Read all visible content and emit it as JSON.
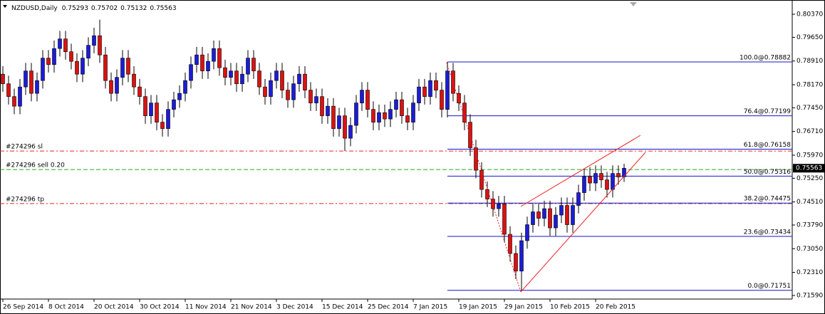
{
  "chart_data": {
    "type": "candlestick",
    "title": "NZDUSD,Daily",
    "categories": [
      "26 Sep 2014",
      null,
      null,
      null,
      null,
      null,
      null,
      null,
      "8 Oct 2014",
      null,
      null,
      null,
      null,
      null,
      null,
      null,
      "20 Oct 2014",
      null,
      null,
      null,
      null,
      null,
      null,
      null,
      "30 Oct 2014",
      null,
      null,
      null,
      null,
      null,
      null,
      null,
      "11 Nov 2014",
      null,
      null,
      null,
      null,
      null,
      null,
      null,
      "21 Nov 2014",
      null,
      null,
      null,
      null,
      null,
      null,
      null,
      "3 Dec 2014",
      null,
      null,
      null,
      null,
      null,
      null,
      null,
      "15 Dec 2014",
      null,
      null,
      null,
      null,
      null,
      null,
      null,
      "25 Dec 2014",
      null,
      null,
      null,
      null,
      null,
      null,
      null,
      "7 Jan 2015",
      null,
      null,
      null,
      null,
      null,
      null,
      null,
      "19 Jan 2015",
      null,
      null,
      null,
      null,
      null,
      null,
      null,
      "29 Jan 2015",
      null,
      null,
      null,
      null,
      null,
      null,
      null,
      "10 Feb 2015",
      null,
      null,
      null,
      null,
      null,
      null,
      null,
      "20 Feb 2015",
      null,
      null,
      null,
      null,
      null
    ],
    "open": [
      0.785,
      0.782,
      0.778,
      0.775,
      0.781,
      0.786,
      0.779,
      0.783,
      0.79,
      0.788,
      0.793,
      0.796,
      0.792,
      0.789,
      0.785,
      0.79,
      0.794,
      0.797,
      0.791,
      0.783,
      0.779,
      0.784,
      0.79,
      0.785,
      0.781,
      0.778,
      0.772,
      0.776,
      0.77,
      0.768,
      0.774,
      0.777,
      0.779,
      0.783,
      0.788,
      0.791,
      0.786,
      0.789,
      0.793,
      0.787,
      0.784,
      0.786,
      0.782,
      0.785,
      0.79,
      0.786,
      0.781,
      0.778,
      0.783,
      0.786,
      0.78,
      0.777,
      0.782,
      0.785,
      0.78,
      0.776,
      0.778,
      0.772,
      0.775,
      0.768,
      0.772,
      0.765,
      0.769,
      0.776,
      0.78,
      0.774,
      0.77,
      0.773,
      0.771,
      0.774,
      0.777,
      0.772,
      0.77,
      0.776,
      0.781,
      0.778,
      0.783,
      0.78,
      0.774,
      0.786,
      0.779,
      0.776,
      0.77,
      0.762,
      0.755,
      0.749,
      0.746,
      0.743,
      0.7445,
      0.735,
      0.729,
      0.7235,
      0.733,
      0.738,
      0.742,
      0.74,
      0.743,
      0.737,
      0.741,
      0.744,
      0.738,
      0.744,
      0.748,
      0.753,
      0.751,
      0.754,
      0.752,
      0.749,
      0.754,
      0.75293
    ],
    "high": [
      0.7875,
      0.7845,
      0.7805,
      0.7835,
      0.7885,
      0.7885,
      0.7855,
      0.7925,
      0.7925,
      0.7955,
      0.7985,
      0.7985,
      0.7945,
      0.7915,
      0.7925,
      0.7965,
      0.7995,
      0.802,
      0.7935,
      0.7855,
      0.7865,
      0.7925,
      0.7925,
      0.7875,
      0.7835,
      0.7805,
      0.7785,
      0.7785,
      0.7725,
      0.7765,
      0.7795,
      0.7815,
      0.7855,
      0.7905,
      0.7935,
      0.7935,
      0.7915,
      0.7955,
      0.7955,
      0.7895,
      0.7885,
      0.7885,
      0.7875,
      0.7925,
      0.7925,
      0.7885,
      0.7835,
      0.7855,
      0.7885,
      0.7885,
      0.7825,
      0.7845,
      0.7875,
      0.7875,
      0.7825,
      0.7805,
      0.7805,
      0.7775,
      0.7775,
      0.7745,
      0.7745,
      0.7715,
      0.7785,
      0.7825,
      0.7825,
      0.7765,
      0.7755,
      0.7755,
      0.7765,
      0.7795,
      0.7795,
      0.7745,
      0.7785,
      0.7835,
      0.7835,
      0.7855,
      0.7855,
      0.7825,
      0.78882,
      0.7885,
      0.7815,
      0.7785,
      0.7725,
      0.7645,
      0.7575,
      0.7515,
      0.7485,
      0.747,
      0.747,
      0.7375,
      0.7315,
      0.7355,
      0.7405,
      0.7445,
      0.7445,
      0.7455,
      0.7455,
      0.7435,
      0.7465,
      0.7465,
      0.7465,
      0.7505,
      0.7555,
      0.756,
      0.7565,
      0.7565,
      0.7545,
      0.7565,
      0.7565,
      0.75702
    ],
    "low": [
      0.7795,
      0.7755,
      0.7725,
      0.7725,
      0.7785,
      0.7765,
      0.7765,
      0.7805,
      0.7855,
      0.7855,
      0.7905,
      0.7895,
      0.7865,
      0.7825,
      0.7825,
      0.7875,
      0.7915,
      0.7885,
      0.7805,
      0.7765,
      0.7765,
      0.7815,
      0.7825,
      0.7785,
      0.7755,
      0.7695,
      0.7695,
      0.7675,
      0.7655,
      0.7655,
      0.7715,
      0.7745,
      0.7765,
      0.7805,
      0.7855,
      0.7835,
      0.7835,
      0.7865,
      0.7845,
      0.7815,
      0.7815,
      0.7795,
      0.7795,
      0.7825,
      0.7835,
      0.7785,
      0.7755,
      0.7755,
      0.7805,
      0.7775,
      0.7745,
      0.7745,
      0.7795,
      0.7775,
      0.7735,
      0.7735,
      0.7695,
      0.7695,
      0.7655,
      0.7655,
      0.761,
      0.7625,
      0.7665,
      0.7735,
      0.7715,
      0.7675,
      0.7675,
      0.7685,
      0.7685,
      0.7715,
      0.7695,
      0.7675,
      0.7675,
      0.7735,
      0.7755,
      0.7755,
      0.7775,
      0.7715,
      0.7715,
      0.7765,
      0.7735,
      0.7675,
      0.7595,
      0.7525,
      0.7465,
      0.7435,
      0.7405,
      0.7405,
      0.7325,
      0.7265,
      0.721,
      0.71751,
      0.7305,
      0.7355,
      0.7375,
      0.7375,
      0.7345,
      0.7345,
      0.7385,
      0.7355,
      0.7355,
      0.7415,
      0.7455,
      0.7485,
      0.7485,
      0.7495,
      0.7465,
      0.7465,
      0.7505,
      0.75132
    ],
    "close": [
      0.782,
      0.778,
      0.775,
      0.781,
      0.786,
      0.779,
      0.783,
      0.79,
      0.788,
      0.793,
      0.796,
      0.792,
      0.789,
      0.785,
      0.79,
      0.794,
      0.797,
      0.791,
      0.783,
      0.779,
      0.784,
      0.79,
      0.785,
      0.781,
      0.778,
      0.772,
      0.776,
      0.77,
      0.768,
      0.774,
      0.777,
      0.779,
      0.783,
      0.788,
      0.791,
      0.786,
      0.789,
      0.793,
      0.787,
      0.784,
      0.786,
      0.782,
      0.785,
      0.79,
      0.786,
      0.781,
      0.778,
      0.783,
      0.786,
      0.78,
      0.777,
      0.782,
      0.785,
      0.78,
      0.776,
      0.778,
      0.772,
      0.775,
      0.768,
      0.772,
      0.765,
      0.769,
      0.776,
      0.78,
      0.774,
      0.77,
      0.773,
      0.771,
      0.774,
      0.777,
      0.772,
      0.77,
      0.776,
      0.781,
      0.778,
      0.783,
      0.78,
      0.774,
      0.786,
      0.779,
      0.776,
      0.77,
      0.762,
      0.755,
      0.749,
      0.746,
      0.743,
      0.7445,
      0.735,
      0.729,
      0.7235,
      0.733,
      0.738,
      0.742,
      0.74,
      0.743,
      0.737,
      0.741,
      0.744,
      0.738,
      0.744,
      0.748,
      0.753,
      0.751,
      0.754,
      0.752,
      0.749,
      0.754,
      0.7529,
      0.75563
    ],
    "up_color": "#1c1cd8",
    "down_color": "#dd1111",
    "ylim": [
      0.71478,
      0.80815
    ],
    "yticks": [
      {
        "value": 0.8037,
        "label": "0.80370"
      },
      {
        "value": 0.7965,
        "label": "0.79650"
      },
      {
        "value": 0.7891,
        "label": "0.78910"
      },
      {
        "value": 0.7817,
        "label": "0.78170"
      },
      {
        "value": 0.7745,
        "label": "0.77450"
      },
      {
        "value": 0.7671,
        "label": "0.76710"
      },
      {
        "value": 0.7597,
        "label": "0.75970"
      },
      {
        "value": 0.7525,
        "label": "0.75250"
      },
      {
        "value": 0.7451,
        "label": "0.74510"
      },
      {
        "value": 0.7379,
        "label": "0.73790"
      },
      {
        "value": 0.7305,
        "label": "0.73050"
      },
      {
        "value": 0.7231,
        "label": "0.72310"
      },
      {
        "value": 0.7159,
        "label": "0.71590"
      }
    ],
    "fib_levels": [
      {
        "value": 0.78882,
        "label": "100.0@0.78882"
      },
      {
        "value": 0.77199,
        "label": "76.4@0.77199"
      },
      {
        "value": 0.76158,
        "label": "61.8@0.76158"
      },
      {
        "value": 0.75316,
        "label": "50.0@0.75316"
      },
      {
        "value": 0.74475,
        "label": "38.2@0.74475"
      },
      {
        "value": 0.73434,
        "label": "23.6@0.73434"
      },
      {
        "value": 0.71751,
        "label": "0.0@0.71751"
      }
    ],
    "fib_color": "#1414c8",
    "order_lines": [
      {
        "label": "#274296 sl",
        "value": 0.761,
        "color": "#ee2222"
      },
      {
        "label": "#274296 sell 0.20",
        "value": 0.7552,
        "color": "#22aa22"
      },
      {
        "label": "#274296 tp",
        "value": 0.7446,
        "color": "#ee2222"
      }
    ]
  }
}
